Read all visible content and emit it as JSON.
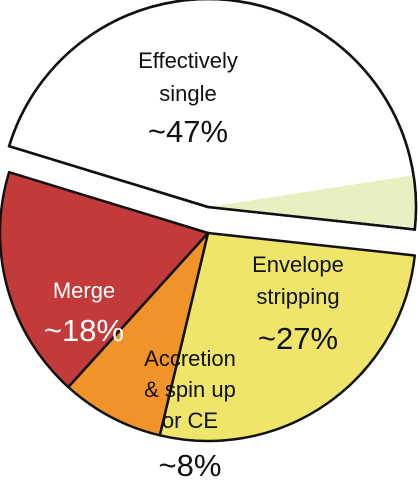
{
  "chart_data": {
    "type": "pie",
    "title": "",
    "slices": [
      {
        "label_lines": [
          "Effectively",
          "single"
        ],
        "value_label": "~47%",
        "value": 47,
        "color": "#ffffff",
        "text_color": "#111111",
        "exploded": true
      },
      {
        "label_lines": [
          "Envelope",
          "stripping"
        ],
        "value_label": "~27%",
        "value": 27,
        "color": "#efe56a",
        "text_color": "#111111",
        "exploded": false
      },
      {
        "label_lines": [
          "Accretion",
          "& spin up",
          "or CE"
        ],
        "value_label": "~8%",
        "value": 8,
        "color": "#f19329",
        "text_color": "#111111",
        "exploded": false
      },
      {
        "label_lines": [
          "Merge"
        ],
        "value_label": "~18%",
        "value": 18,
        "color": "#c23b3a",
        "text_color": "#ffffff",
        "exploded": false
      }
    ],
    "highlight_wedge_color": "#e8efc0"
  }
}
